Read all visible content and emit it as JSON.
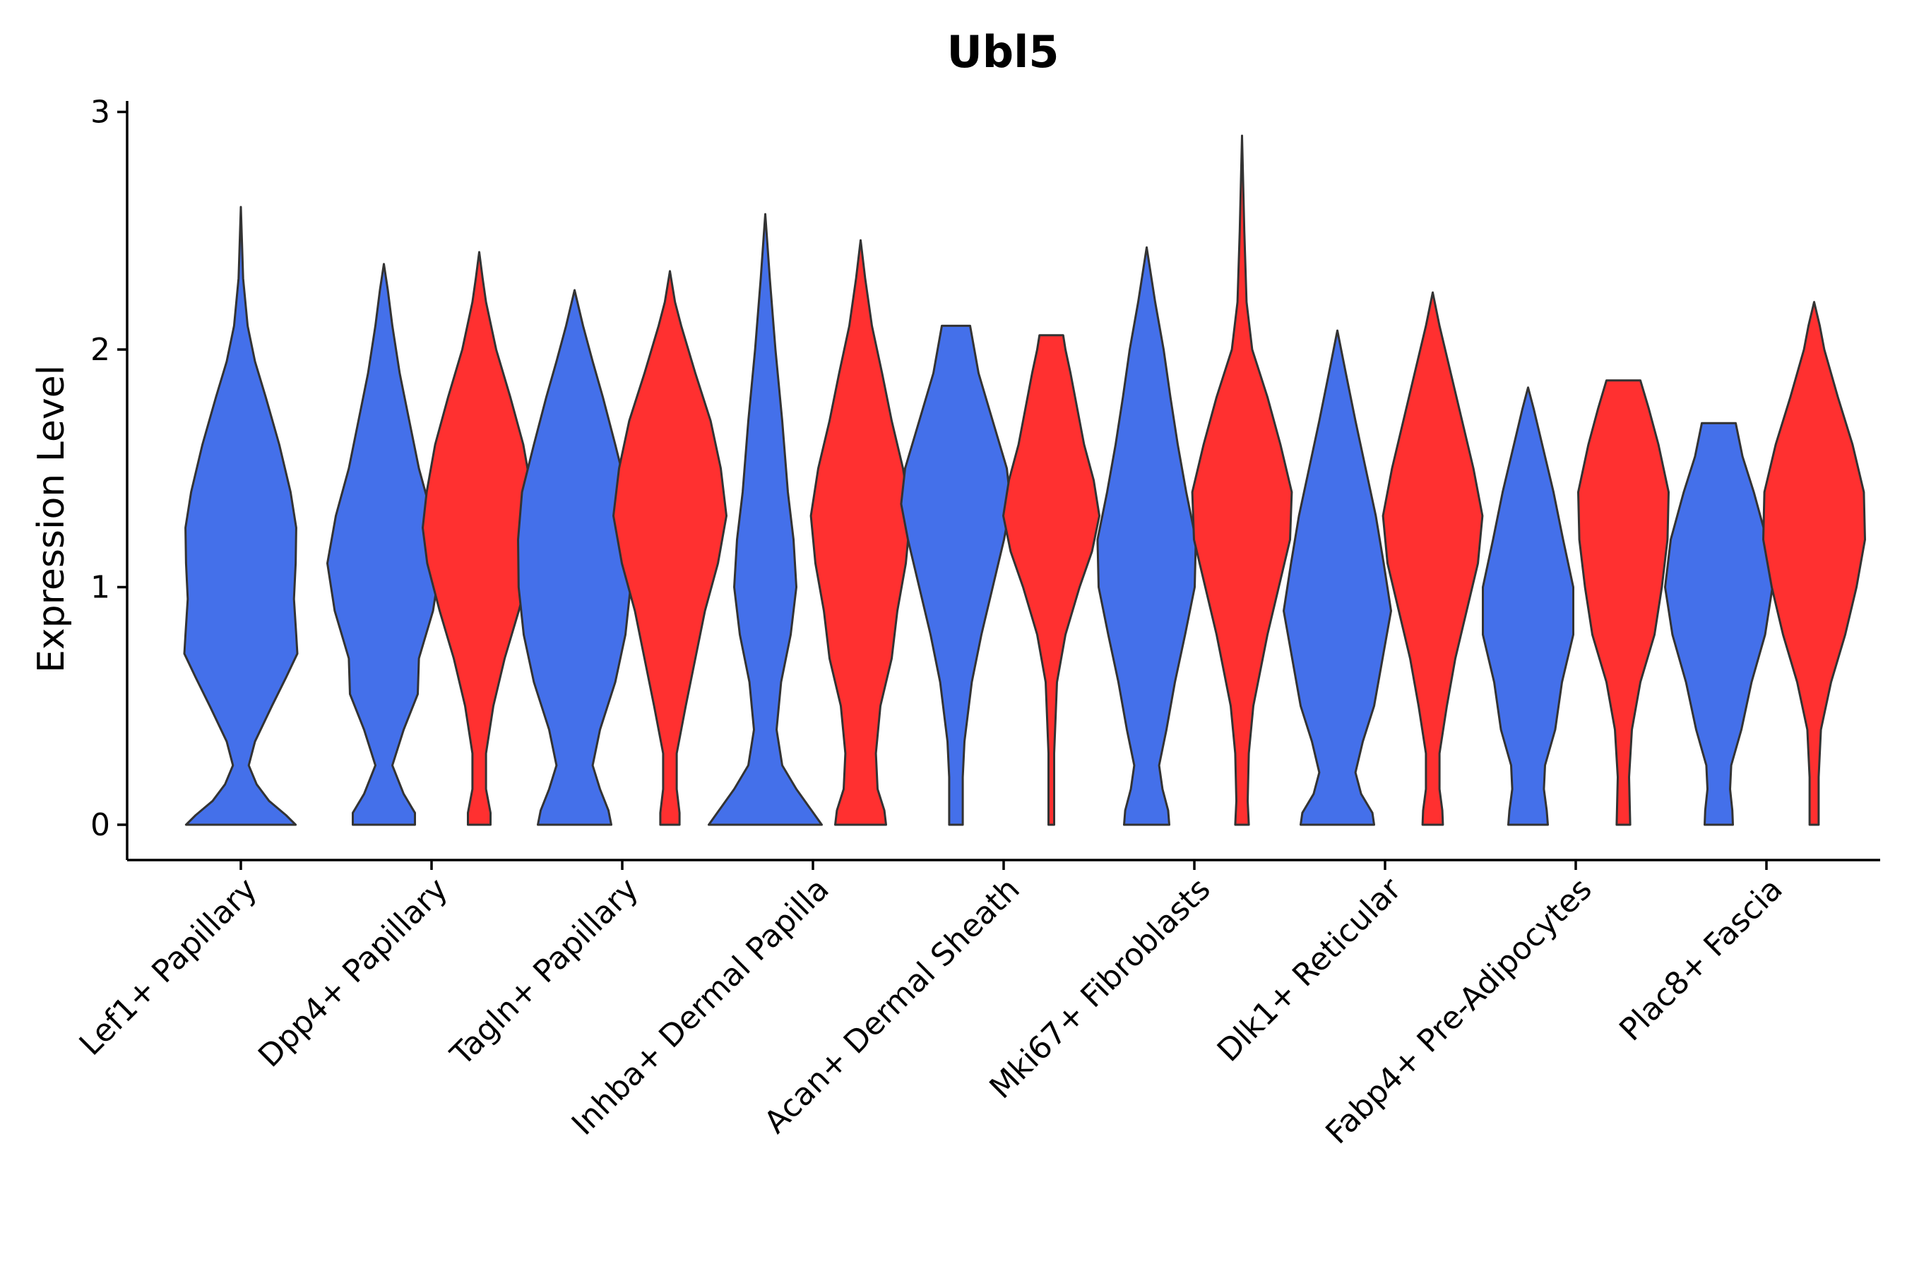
{
  "chart_data": {
    "type": "violin",
    "title": "Ubl5",
    "xlabel": "",
    "ylabel": "Expression Level",
    "ylim": [
      -0.15,
      3.05
    ],
    "yticks": [
      0,
      1,
      2,
      3
    ],
    "grid": false,
    "legend": "none",
    "colors": {
      "group_a": "#4470ea",
      "group_b": "#ff3030",
      "outline": "#333333"
    },
    "categories": [
      "Lef1+ Papillary",
      "Dpp4+ Papillary",
      "Tagln+ Papillary",
      "Inhba+ Dermal Papilla",
      "Acan+ Dermal Sheath",
      "Mki67+ Fibroblasts",
      "Dlk1+ Reticular",
      "Fabp4+ Pre-Adipocytes",
      "Plac8+ Fascia"
    ],
    "violins": [
      {
        "category": "Lef1+ Papillary",
        "group": "a",
        "max": 2.6,
        "profile": [
          [
            0,
            0.97
          ],
          [
            0.04,
            0.8
          ],
          [
            0.1,
            0.5
          ],
          [
            0.17,
            0.28
          ],
          [
            0.25,
            0.14
          ],
          [
            0.35,
            0.25
          ],
          [
            0.5,
            0.55
          ],
          [
            0.62,
            0.8
          ],
          [
            0.72,
            1.0
          ],
          [
            0.8,
            0.98
          ],
          [
            0.95,
            0.94
          ],
          [
            1.1,
            0.97
          ],
          [
            1.25,
            0.98
          ],
          [
            1.4,
            0.88
          ],
          [
            1.6,
            0.68
          ],
          [
            1.8,
            0.44
          ],
          [
            1.95,
            0.25
          ],
          [
            2.1,
            0.12
          ],
          [
            2.3,
            0.04
          ],
          [
            2.45,
            0.02
          ],
          [
            2.6,
            0
          ]
        ]
      },
      {
        "category": "Dpp4+ Papillary",
        "group": "a",
        "max": 2.36,
        "profile": [
          [
            0,
            0.55
          ],
          [
            0.05,
            0.55
          ],
          [
            0.13,
            0.35
          ],
          [
            0.25,
            0.15
          ],
          [
            0.4,
            0.35
          ],
          [
            0.55,
            0.6
          ],
          [
            0.7,
            0.62
          ],
          [
            0.9,
            0.87
          ],
          [
            1.1,
            1.0
          ],
          [
            1.3,
            0.85
          ],
          [
            1.5,
            0.62
          ],
          [
            1.7,
            0.45
          ],
          [
            1.9,
            0.28
          ],
          [
            2.1,
            0.15
          ],
          [
            2.25,
            0.07
          ],
          [
            2.36,
            0
          ]
        ]
      },
      {
        "category": "Dpp4+ Papillary",
        "group": "b",
        "max": 2.41,
        "profile": [
          [
            0,
            0.2
          ],
          [
            0.05,
            0.2
          ],
          [
            0.15,
            0.12
          ],
          [
            0.3,
            0.12
          ],
          [
            0.5,
            0.25
          ],
          [
            0.7,
            0.45
          ],
          [
            0.9,
            0.7
          ],
          [
            1.1,
            0.92
          ],
          [
            1.25,
            1.0
          ],
          [
            1.4,
            0.93
          ],
          [
            1.6,
            0.78
          ],
          [
            1.8,
            0.55
          ],
          [
            2.0,
            0.3
          ],
          [
            2.2,
            0.12
          ],
          [
            2.3,
            0.06
          ],
          [
            2.41,
            0
          ]
        ]
      },
      {
        "category": "Tagln+ Papillary",
        "group": "a",
        "max": 2.25,
        "profile": [
          [
            0,
            0.65
          ],
          [
            0.06,
            0.6
          ],
          [
            0.15,
            0.45
          ],
          [
            0.25,
            0.32
          ],
          [
            0.4,
            0.45
          ],
          [
            0.6,
            0.72
          ],
          [
            0.8,
            0.9
          ],
          [
            1.0,
            0.99
          ],
          [
            1.2,
            1.0
          ],
          [
            1.4,
            0.93
          ],
          [
            1.6,
            0.72
          ],
          [
            1.8,
            0.5
          ],
          [
            1.95,
            0.32
          ],
          [
            2.1,
            0.15
          ],
          [
            2.25,
            0
          ]
        ]
      },
      {
        "category": "Tagln+ Papillary",
        "group": "b",
        "max": 2.33,
        "profile": [
          [
            0,
            0.17
          ],
          [
            0.05,
            0.17
          ],
          [
            0.15,
            0.12
          ],
          [
            0.3,
            0.12
          ],
          [
            0.5,
            0.28
          ],
          [
            0.7,
            0.45
          ],
          [
            0.9,
            0.62
          ],
          [
            1.1,
            0.85
          ],
          [
            1.3,
            1.0
          ],
          [
            1.5,
            0.9
          ],
          [
            1.7,
            0.72
          ],
          [
            1.9,
            0.45
          ],
          [
            2.1,
            0.2
          ],
          [
            2.2,
            0.09
          ],
          [
            2.33,
            0
          ]
        ]
      },
      {
        "category": "Inhba+ Dermal Papilla",
        "group": "a",
        "max": 2.57,
        "profile": [
          [
            0,
            1.0
          ],
          [
            0.06,
            0.82
          ],
          [
            0.15,
            0.55
          ],
          [
            0.25,
            0.3
          ],
          [
            0.4,
            0.2
          ],
          [
            0.6,
            0.28
          ],
          [
            0.8,
            0.45
          ],
          [
            1.0,
            0.55
          ],
          [
            1.2,
            0.5
          ],
          [
            1.4,
            0.4
          ],
          [
            1.7,
            0.3
          ],
          [
            2.0,
            0.18
          ],
          [
            2.3,
            0.08
          ],
          [
            2.57,
            0
          ]
        ]
      },
      {
        "category": "Inhba+ Dermal Papilla",
        "group": "b",
        "max": 2.46,
        "profile": [
          [
            0,
            0.45
          ],
          [
            0.06,
            0.42
          ],
          [
            0.15,
            0.3
          ],
          [
            0.3,
            0.27
          ],
          [
            0.5,
            0.35
          ],
          [
            0.7,
            0.55
          ],
          [
            0.9,
            0.65
          ],
          [
            1.1,
            0.8
          ],
          [
            1.3,
            0.88
          ],
          [
            1.5,
            0.75
          ],
          [
            1.7,
            0.55
          ],
          [
            1.9,
            0.38
          ],
          [
            2.1,
            0.2
          ],
          [
            2.3,
            0.08
          ],
          [
            2.46,
            0
          ]
        ]
      },
      {
        "category": "Acan+ Dermal Sheath",
        "group": "a",
        "max": 2.1,
        "profile": [
          [
            0,
            0.12
          ],
          [
            0.1,
            0.12
          ],
          [
            0.2,
            0.12
          ],
          [
            0.35,
            0.15
          ],
          [
            0.6,
            0.28
          ],
          [
            0.8,
            0.45
          ],
          [
            1.0,
            0.65
          ],
          [
            1.2,
            0.85
          ],
          [
            1.35,
            0.97
          ],
          [
            1.5,
            0.9
          ],
          [
            1.7,
            0.65
          ],
          [
            1.9,
            0.4
          ],
          [
            2.1,
            0.25
          ]
        ]
      },
      {
        "category": "Acan+ Dermal Sheath",
        "group": "b",
        "max": 2.06,
        "profile": [
          [
            0,
            0.05
          ],
          [
            0.3,
            0.05
          ],
          [
            0.6,
            0.1
          ],
          [
            0.8,
            0.25
          ],
          [
            1.0,
            0.5
          ],
          [
            1.15,
            0.72
          ],
          [
            1.3,
            0.85
          ],
          [
            1.45,
            0.75
          ],
          [
            1.6,
            0.58
          ],
          [
            1.75,
            0.46
          ],
          [
            1.9,
            0.34
          ],
          [
            2.0,
            0.25
          ],
          [
            2.06,
            0.21
          ]
        ]
      },
      {
        "category": "Mki67+ Fibroblasts",
        "group": "a",
        "max": 2.43,
        "profile": [
          [
            0,
            0.4
          ],
          [
            0.06,
            0.38
          ],
          [
            0.15,
            0.28
          ],
          [
            0.25,
            0.22
          ],
          [
            0.4,
            0.35
          ],
          [
            0.6,
            0.5
          ],
          [
            0.8,
            0.68
          ],
          [
            1.0,
            0.85
          ],
          [
            1.2,
            0.87
          ],
          [
            1.4,
            0.7
          ],
          [
            1.6,
            0.55
          ],
          [
            1.8,
            0.42
          ],
          [
            2.0,
            0.3
          ],
          [
            2.2,
            0.15
          ],
          [
            2.43,
            0
          ]
        ]
      },
      {
        "category": "Mki67+ Fibroblasts",
        "group": "b",
        "max": 2.9,
        "profile": [
          [
            0,
            0.12
          ],
          [
            0.1,
            0.1
          ],
          [
            0.3,
            0.12
          ],
          [
            0.5,
            0.2
          ],
          [
            0.8,
            0.45
          ],
          [
            1.0,
            0.65
          ],
          [
            1.2,
            0.85
          ],
          [
            1.4,
            0.88
          ],
          [
            1.6,
            0.68
          ],
          [
            1.8,
            0.45
          ],
          [
            2.0,
            0.18
          ],
          [
            2.2,
            0.08
          ],
          [
            2.5,
            0.04
          ],
          [
            2.9,
            0
          ]
        ]
      },
      {
        "category": "Dlk1+ Reticular",
        "group": "a",
        "max": 2.08,
        "profile": [
          [
            0,
            0.65
          ],
          [
            0.05,
            0.62
          ],
          [
            0.13,
            0.42
          ],
          [
            0.22,
            0.32
          ],
          [
            0.35,
            0.45
          ],
          [
            0.5,
            0.65
          ],
          [
            0.7,
            0.8
          ],
          [
            0.9,
            0.95
          ],
          [
            1.1,
            0.82
          ],
          [
            1.3,
            0.68
          ],
          [
            1.5,
            0.5
          ],
          [
            1.7,
            0.32
          ],
          [
            1.9,
            0.15
          ],
          [
            2.08,
            0
          ]
        ]
      },
      {
        "category": "Dlk1+ Reticular",
        "group": "b",
        "max": 2.24,
        "profile": [
          [
            0,
            0.18
          ],
          [
            0.06,
            0.17
          ],
          [
            0.15,
            0.12
          ],
          [
            0.3,
            0.12
          ],
          [
            0.5,
            0.25
          ],
          [
            0.7,
            0.4
          ],
          [
            0.9,
            0.6
          ],
          [
            1.1,
            0.8
          ],
          [
            1.3,
            0.88
          ],
          [
            1.5,
            0.72
          ],
          [
            1.7,
            0.52
          ],
          [
            1.9,
            0.32
          ],
          [
            2.1,
            0.12
          ],
          [
            2.24,
            0
          ]
        ]
      },
      {
        "category": "Fabp4+ Pre-Adipocytes",
        "group": "a",
        "max": 1.84,
        "profile": [
          [
            0,
            0.35
          ],
          [
            0.06,
            0.33
          ],
          [
            0.15,
            0.28
          ],
          [
            0.25,
            0.3
          ],
          [
            0.4,
            0.48
          ],
          [
            0.6,
            0.6
          ],
          [
            0.8,
            0.8
          ],
          [
            1.0,
            0.8
          ],
          [
            1.2,
            0.62
          ],
          [
            1.4,
            0.45
          ],
          [
            1.6,
            0.25
          ],
          [
            1.75,
            0.1
          ],
          [
            1.84,
            0
          ]
        ]
      },
      {
        "category": "Fabp4+ Pre-Adipocytes",
        "group": "b",
        "max": 1.87,
        "profile": [
          [
            0,
            0.12
          ],
          [
            0.2,
            0.1
          ],
          [
            0.4,
            0.15
          ],
          [
            0.6,
            0.3
          ],
          [
            0.8,
            0.55
          ],
          [
            1.0,
            0.68
          ],
          [
            1.2,
            0.78
          ],
          [
            1.4,
            0.8
          ],
          [
            1.6,
            0.62
          ],
          [
            1.75,
            0.45
          ],
          [
            1.87,
            0.3
          ]
        ]
      },
      {
        "category": "Plac8+ Fascia",
        "group": "a",
        "max": 1.69,
        "profile": [
          [
            0,
            0.25
          ],
          [
            0.06,
            0.24
          ],
          [
            0.15,
            0.2
          ],
          [
            0.25,
            0.22
          ],
          [
            0.4,
            0.4
          ],
          [
            0.6,
            0.58
          ],
          [
            0.8,
            0.82
          ],
          [
            1.0,
            0.95
          ],
          [
            1.2,
            0.85
          ],
          [
            1.4,
            0.62
          ],
          [
            1.55,
            0.42
          ],
          [
            1.69,
            0.3
          ]
        ]
      },
      {
        "category": "Plac8+ Fascia",
        "group": "b",
        "max": 2.2,
        "profile": [
          [
            0,
            0.08
          ],
          [
            0.2,
            0.08
          ],
          [
            0.4,
            0.12
          ],
          [
            0.6,
            0.3
          ],
          [
            0.8,
            0.55
          ],
          [
            1.0,
            0.75
          ],
          [
            1.2,
            0.9
          ],
          [
            1.4,
            0.88
          ],
          [
            1.6,
            0.68
          ],
          [
            1.8,
            0.42
          ],
          [
            2.0,
            0.18
          ],
          [
            2.1,
            0.1
          ],
          [
            2.2,
            0
          ]
        ]
      }
    ]
  }
}
